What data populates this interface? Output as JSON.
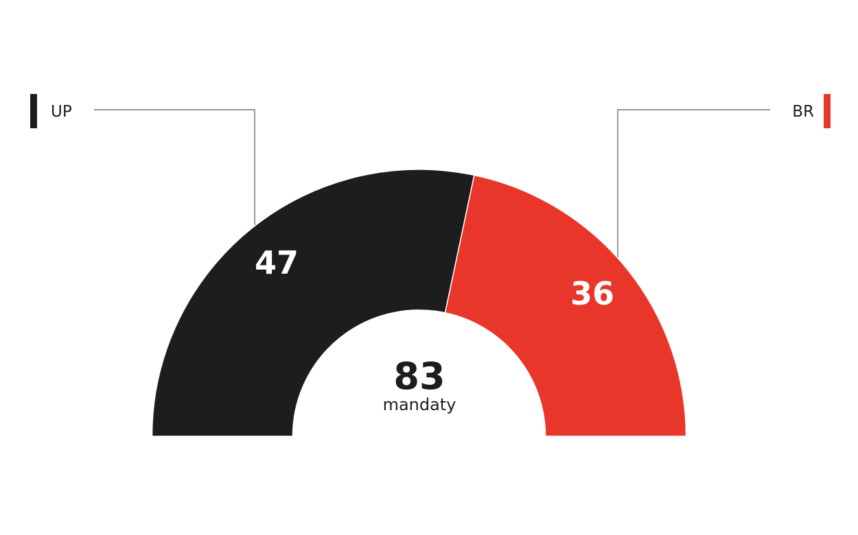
{
  "chart_data": {
    "type": "pie",
    "variant": "half-donut",
    "categories": [
      "UP",
      "BR"
    ],
    "values": [
      47,
      36
    ],
    "colors": [
      "#1d1d1d",
      "#e8362b"
    ],
    "total": {
      "value": "83",
      "label": "mandaty"
    },
    "legend": "top-left and top-right with leader lines"
  }
}
